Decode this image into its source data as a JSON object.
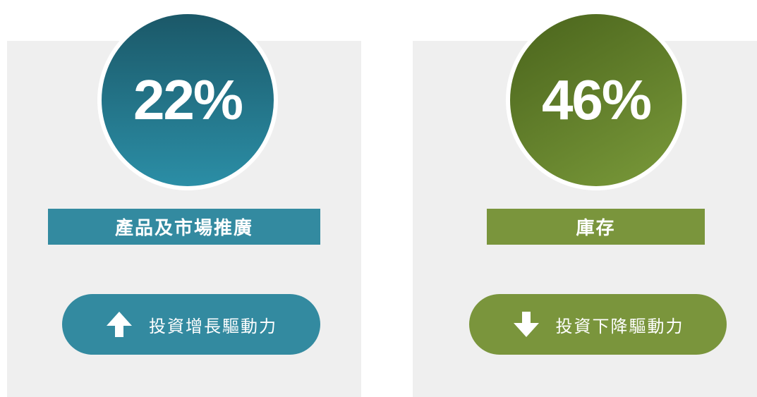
{
  "cards": [
    {
      "percent": "22%",
      "label": "產品及市場推廣",
      "button": "投資增長驅動力"
    },
    {
      "percent": "46%",
      "label": "庫存",
      "button": "投資下降驅動力"
    }
  ]
}
